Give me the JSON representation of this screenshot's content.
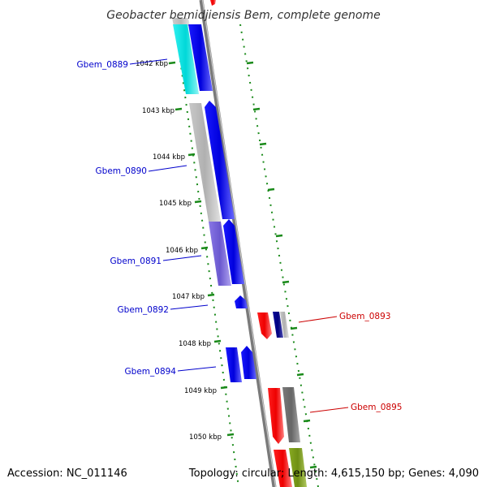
{
  "title": "Geobacter bemidjiensis Bem, complete genome",
  "footer": {
    "accession": "Accession: NC_011146",
    "summary": "Topology: circular; Length: 4,615,150 bp; Genes: 4,090"
  },
  "scale_labels": [
    "1042 kbp",
    "1043 kbp",
    "1044 kbp",
    "1045 kbp",
    "1046 kbp",
    "1047 kbp",
    "1048 kbp",
    "1049 kbp",
    "1050 kbp"
  ],
  "gene_labels": {
    "left": [
      "Gbem_0889",
      "Gbem_0890",
      "Gbem_0891",
      "Gbem_0892",
      "Gbem_0894"
    ],
    "right": [
      "Gbem_0893",
      "Gbem_0895"
    ]
  },
  "colors": {
    "left_label": "#0000cc",
    "right_label": "#cc0000",
    "backbone": "#808080",
    "tick": "#1a8a1a",
    "forward_gene": "#0000ee",
    "reverse_gene": "#ee0000",
    "cyan_gene": "#00dddd",
    "gray_gene": "#b8b8b8",
    "purple_gene": "#7b68d8",
    "navy_gene": "#000088",
    "dark_gray_gene": "#6f6f6f",
    "olive_gene": "#7a9a1a"
  }
}
